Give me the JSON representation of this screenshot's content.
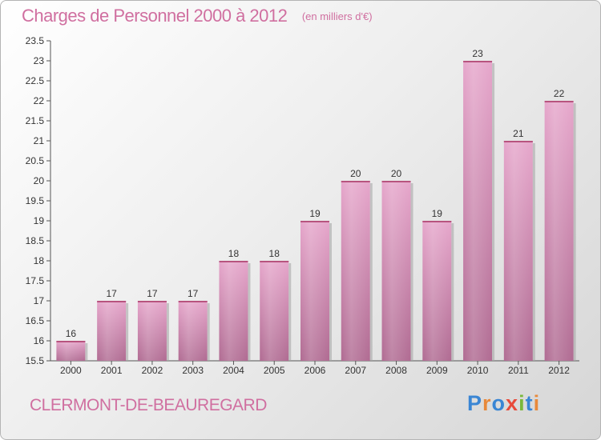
{
  "header": {
    "title": "Charges de Personnel 2000 à 2012",
    "subtitle": "(en milliers d'€)"
  },
  "footer": {
    "city": "CLERMONT-DE-BEAUREGARD",
    "logo_letters": [
      "P",
      "r",
      "o",
      "x",
      "i",
      "t",
      "i"
    ],
    "logo_colors": [
      "#3a86d4",
      "#e8893a",
      "#3a86d4",
      "#e84a3a",
      "#7ab83a",
      "#3a86d4",
      "#e8893a"
    ]
  },
  "chart_data": {
    "type": "bar",
    "title": "Charges de Personnel 2000 à 2012",
    "subtitle": "(en milliers d'€)",
    "categories": [
      "2000",
      "2001",
      "2002",
      "2003",
      "2004",
      "2005",
      "2006",
      "2007",
      "2008",
      "2009",
      "2010",
      "2011",
      "2012"
    ],
    "values": [
      16,
      17,
      17,
      17,
      18,
      18,
      19,
      20,
      20,
      19,
      23,
      21,
      22
    ],
    "data_labels": [
      "16",
      "17",
      "17",
      "17",
      "18",
      "18",
      "19",
      "20",
      "20",
      "19",
      "23",
      "21",
      "22"
    ],
    "ylim": [
      15.5,
      23.5
    ],
    "yticks": [
      "15.5",
      "16",
      "16.5",
      "17",
      "17.5",
      "18",
      "18.5",
      "19",
      "19.5",
      "20",
      "20.5",
      "21",
      "21.5",
      "22",
      "22.5",
      "23",
      "23.5"
    ],
    "grid": false,
    "legend": "none",
    "bar_color": "#d882b0"
  }
}
